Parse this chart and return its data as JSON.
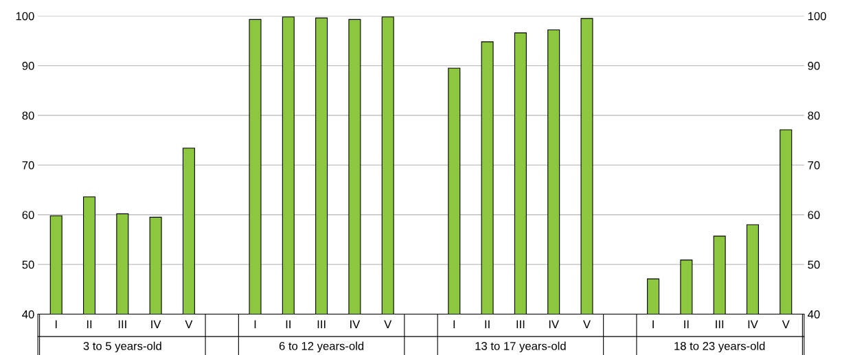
{
  "chart_data": {
    "type": "bar",
    "categories": [
      "I",
      "II",
      "III",
      "IV",
      "V",
      null,
      "I",
      "II",
      "III",
      "IV",
      "V",
      null,
      "I",
      "II",
      "III",
      "IV",
      "V",
      null,
      "I",
      "II",
      "III",
      "IV",
      "V"
    ],
    "values": [
      59.8,
      63.6,
      60.2,
      59.5,
      73.4,
      null,
      99.3,
      99.8,
      99.6,
      99.3,
      99.8,
      null,
      89.5,
      94.8,
      96.6,
      97.2,
      99.5,
      null,
      47.1,
      50.9,
      55.7,
      58.0,
      77.1
    ],
    "color": "#8dc63f",
    "ylim": [
      40,
      100
    ],
    "yticks": [
      40,
      50,
      60,
      70,
      80,
      90,
      100
    ],
    "y2lim": [
      40,
      100
    ],
    "y2ticks": [
      40,
      50,
      60,
      70,
      80,
      90,
      100
    ],
    "grid": "y",
    "annotations": [
      "3 to 5 years-old",
      "6 to 12 years-old",
      "13 to 17 years-old",
      "18 to 23 years-old"
    ]
  }
}
